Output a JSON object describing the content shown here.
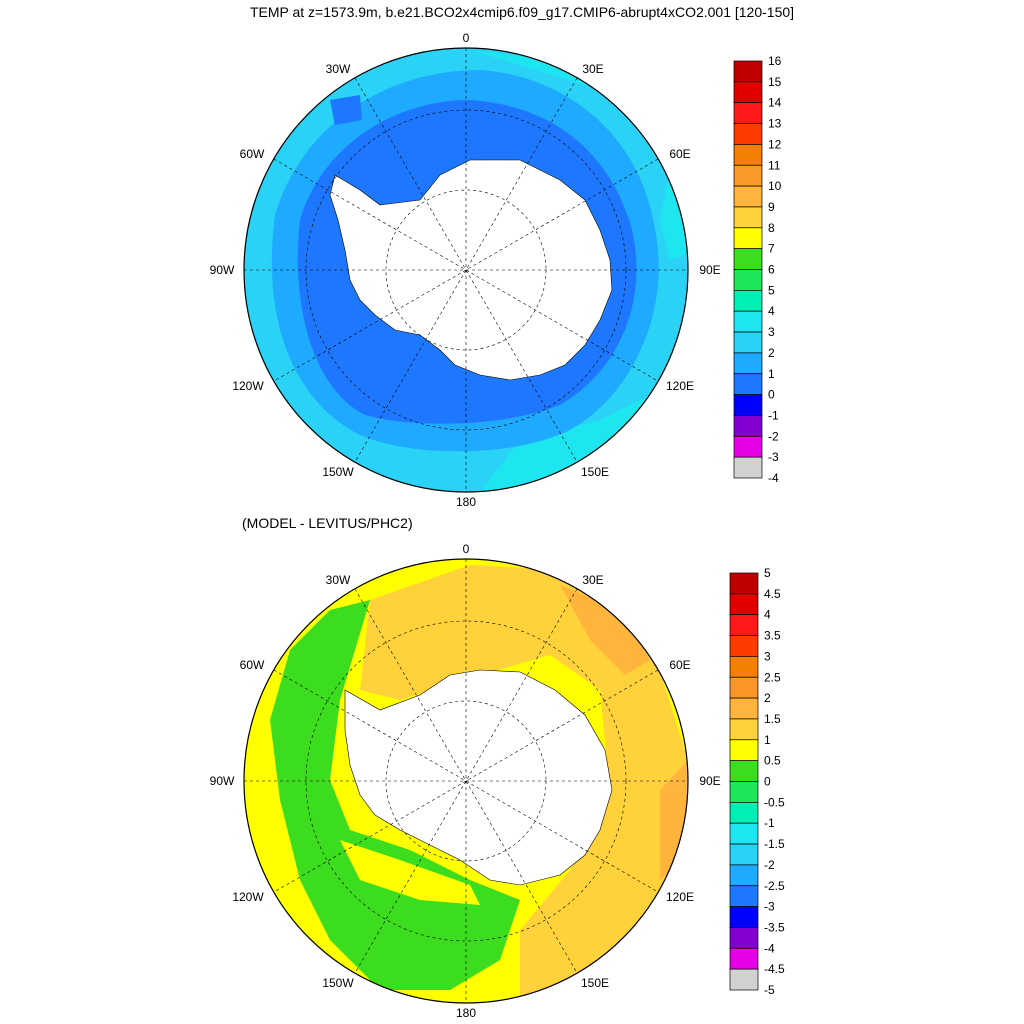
{
  "chart_data": [
    {
      "type": "polar_contour_map",
      "projection": "south polar stereographic",
      "title": "TEMP at z=1573.9m, b.e21.BCO2x4cmip6.f09_g17.CMIP6-abrupt4xCO2.001 [120-150]",
      "longitude_labels": [
        "0",
        "30E",
        "60E",
        "90E",
        "120E",
        "150E",
        "180",
        "150W",
        "120W",
        "90W",
        "60W",
        "30W"
      ],
      "colorbar": {
        "labels": [
          "16",
          "15",
          "14",
          "13",
          "12",
          "11",
          "10",
          "9",
          "8",
          "7",
          "6",
          "5",
          "4",
          "3",
          "2",
          "1",
          "0",
          "-1",
          "-2",
          "-3",
          "-4"
        ],
        "colors": [
          "#c00000",
          "#e00000",
          "#ff1a1a",
          "#ff3c00",
          "#f57f00",
          "#fa9a28",
          "#ffb43c",
          "#ffd23c",
          "#ffff00",
          "#3cdd1e",
          "#1ee65a",
          "#00f0b4",
          "#1ee6f0",
          "#2ad2f5",
          "#1eaaff",
          "#1e78ff",
          "#0000ff",
          "#8200d2",
          "#e600e6",
          "#d2d2d2",
          "#787878"
        ]
      },
      "dominant_values": {
        "inner_ring": 2,
        "outer_ring": 3,
        "outer_edge": 4
      }
    },
    {
      "type": "polar_contour_map",
      "projection": "south polar stereographic",
      "title": "(MODEL - LEVITUS/PHC2)",
      "longitude_labels": [
        "0",
        "30E",
        "60E",
        "90E",
        "120E",
        "150E",
        "180",
        "150W",
        "120W",
        "90W",
        "60W",
        "30W"
      ],
      "colorbar": {
        "labels": [
          "5",
          "4.5",
          "4",
          "3.5",
          "3",
          "2.5",
          "2",
          "1.5",
          "1",
          "0.5",
          "0",
          "-0.5",
          "-1",
          "-1.5",
          "-2",
          "-2.5",
          "-3",
          "-3.5",
          "-4",
          "-4.5",
          "-5"
        ],
        "colors": [
          "#c00000",
          "#e00000",
          "#ff1a1a",
          "#ff3c00",
          "#f57f00",
          "#fa9628",
          "#ffb43c",
          "#ffd23c",
          "#ffff00",
          "#3cdd1e",
          "#1ee65a",
          "#00f0b4",
          "#1ee6f0",
          "#2ad2f5",
          "#1eaaff",
          "#1e78ff",
          "#0000ff",
          "#8200d2",
          "#e600e6",
          "#d2d2d2",
          "#787878"
        ]
      },
      "dominant_values": {
        "west_sector": 0.5,
        "east_sector": 1.5
      }
    }
  ],
  "colors": {
    "land": "#ffffff",
    "coast": "#000000",
    "graticule": "#000000"
  }
}
